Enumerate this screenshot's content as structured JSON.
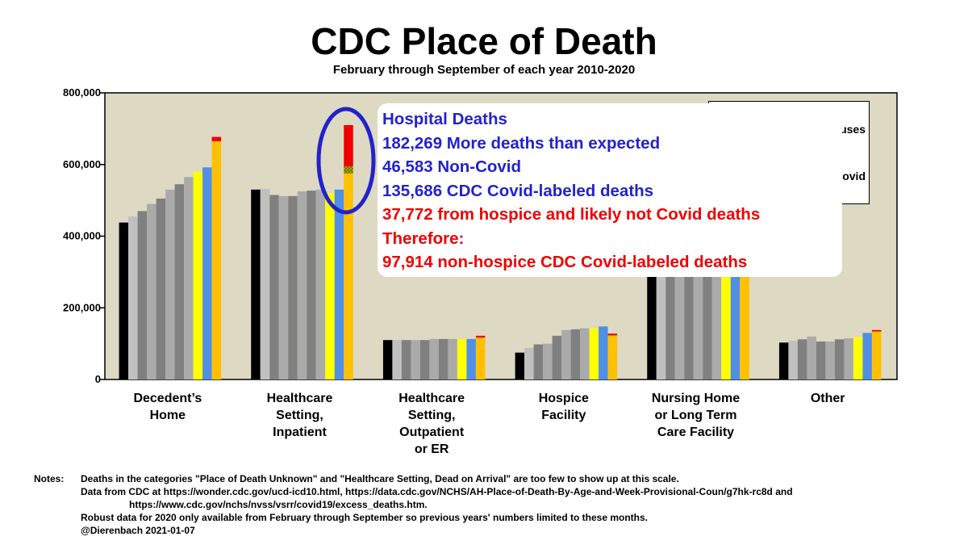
{
  "chart_data": {
    "type": "bar",
    "title": "CDC Place of Death",
    "subtitle": "February through September of each year 2010-2020",
    "xlabel": "",
    "ylabel": "",
    "ylim": [
      0,
      800000
    ],
    "yticks": [
      0,
      200000,
      400000,
      600000,
      800000
    ],
    "ytick_labels": [
      "0",
      "200,000",
      "400,000",
      "600,000",
      "800,000"
    ],
    "grid": false,
    "categories": [
      "Decedent's Home",
      "Healthcare Setting, Inpatient",
      "Healthcare Setting, Outpatient or ER",
      "Hospice Facility",
      "Nursing Home or Long Term Care Facility",
      "Other"
    ],
    "category_labels": [
      [
        "Decedent’s",
        "Home"
      ],
      [
        "Healthcare",
        "Setting,",
        "Inpatient"
      ],
      [
        "Healthcare",
        "Setting,",
        "Outpatient",
        "or ER"
      ],
      [
        "Hospice",
        "Facility"
      ],
      [
        "Nursing Home",
        "or Long Term",
        "Care Facility"
      ],
      [
        "Other"
      ]
    ],
    "series_colors": [
      "#000000",
      "#c0c0c0",
      "#808080",
      "#aaaaaa",
      "#808080",
      "#aaaaaa",
      "#808080",
      "#aaaaaa",
      "#ffff00",
      "#4f8fe6",
      "#ffc000"
    ],
    "values": [
      [
        438000,
        455000,
        470000,
        490000,
        505000,
        530000,
        545000,
        565000,
        580000,
        592000,
        665000
      ],
      [
        530000,
        532000,
        515000,
        512000,
        512000,
        525000,
        527000,
        530000,
        520000,
        530000,
        575000
      ],
      [
        110000,
        110000,
        110000,
        110000,
        110000,
        113000,
        113000,
        113000,
        113000,
        113000,
        117000
      ],
      [
        75000,
        88000,
        98000,
        100000,
        122000,
        138000,
        140000,
        143000,
        143000,
        148000,
        123000
      ],
      [
        420000,
        420000,
        420000,
        420000,
        420000,
        420000,
        420000,
        420000,
        420000,
        420000,
        420000
      ],
      [
        103000,
        108000,
        112000,
        120000,
        106000,
        106000,
        112000,
        115000,
        118000,
        130000,
        134000
      ]
    ],
    "stack_2020": [
      {
        "category": "Decedent's Home",
        "color": "#ee0000",
        "value": 12000
      },
      {
        "category": "Healthcare Setting, Inpatient",
        "color": "#6b6b00",
        "value": 20000,
        "pattern": "hatched"
      },
      {
        "category": "Healthcare Setting, Inpatient",
        "color": "#ee0000",
        "value": 115000
      },
      {
        "category": "Healthcare Setting, Outpatient or ER",
        "color": "#ee0000",
        "value": 5000
      },
      {
        "category": "Hospice Facility",
        "color": "#ee0000",
        "value": 5000
      },
      {
        "category": "Other",
        "color": "#ee0000",
        "value": 4000
      }
    ]
  },
  "legend": {
    "entries": [
      "uses",
      "ovid"
    ]
  },
  "annotation": {
    "lines": [
      {
        "text": "Hospital Deaths",
        "color": "blue"
      },
      {
        "text": "182,269 More deaths than expected",
        "color": "blue"
      },
      {
        "text": "46,583 Non-Covid",
        "color": "blue"
      },
      {
        "text": "135,686 CDC Covid-labeled deaths",
        "color": "blue"
      },
      {
        "text": "37,772 from hospice and likely not Covid deaths",
        "color": "red"
      },
      {
        "text": "Therefore:",
        "color": "red"
      },
      {
        "text": "97,914 non-hospice CDC Covid-labeled deaths",
        "color": "red"
      }
    ],
    "circle_color": "#2222cc"
  },
  "notes": {
    "label": "Notes:",
    "lines": [
      "Deaths in the categories \"Place of Death Unknown\" and \"Healthcare Setting, Dead on Arrival\" are too few to show up at this scale.",
      "Data from CDC at https://wonder.cdc.gov/ucd-icd10.html, https://data.cdc.gov/NCHS/AH-Place-of-Death-By-Age-and-Week-Provisional-Coun/g7hk-rc8d and",
      "https://www.cdc.gov/nchs/nvss/vsrr/covid19/excess_deaths.htm.",
      "Robust data for 2020 only available from February through September so previous years' numbers limited to these months.",
      "@Dierenbach 2021-01-07"
    ]
  },
  "colors": {
    "plot_background": "#ddd9c3",
    "axis": "#000000"
  }
}
